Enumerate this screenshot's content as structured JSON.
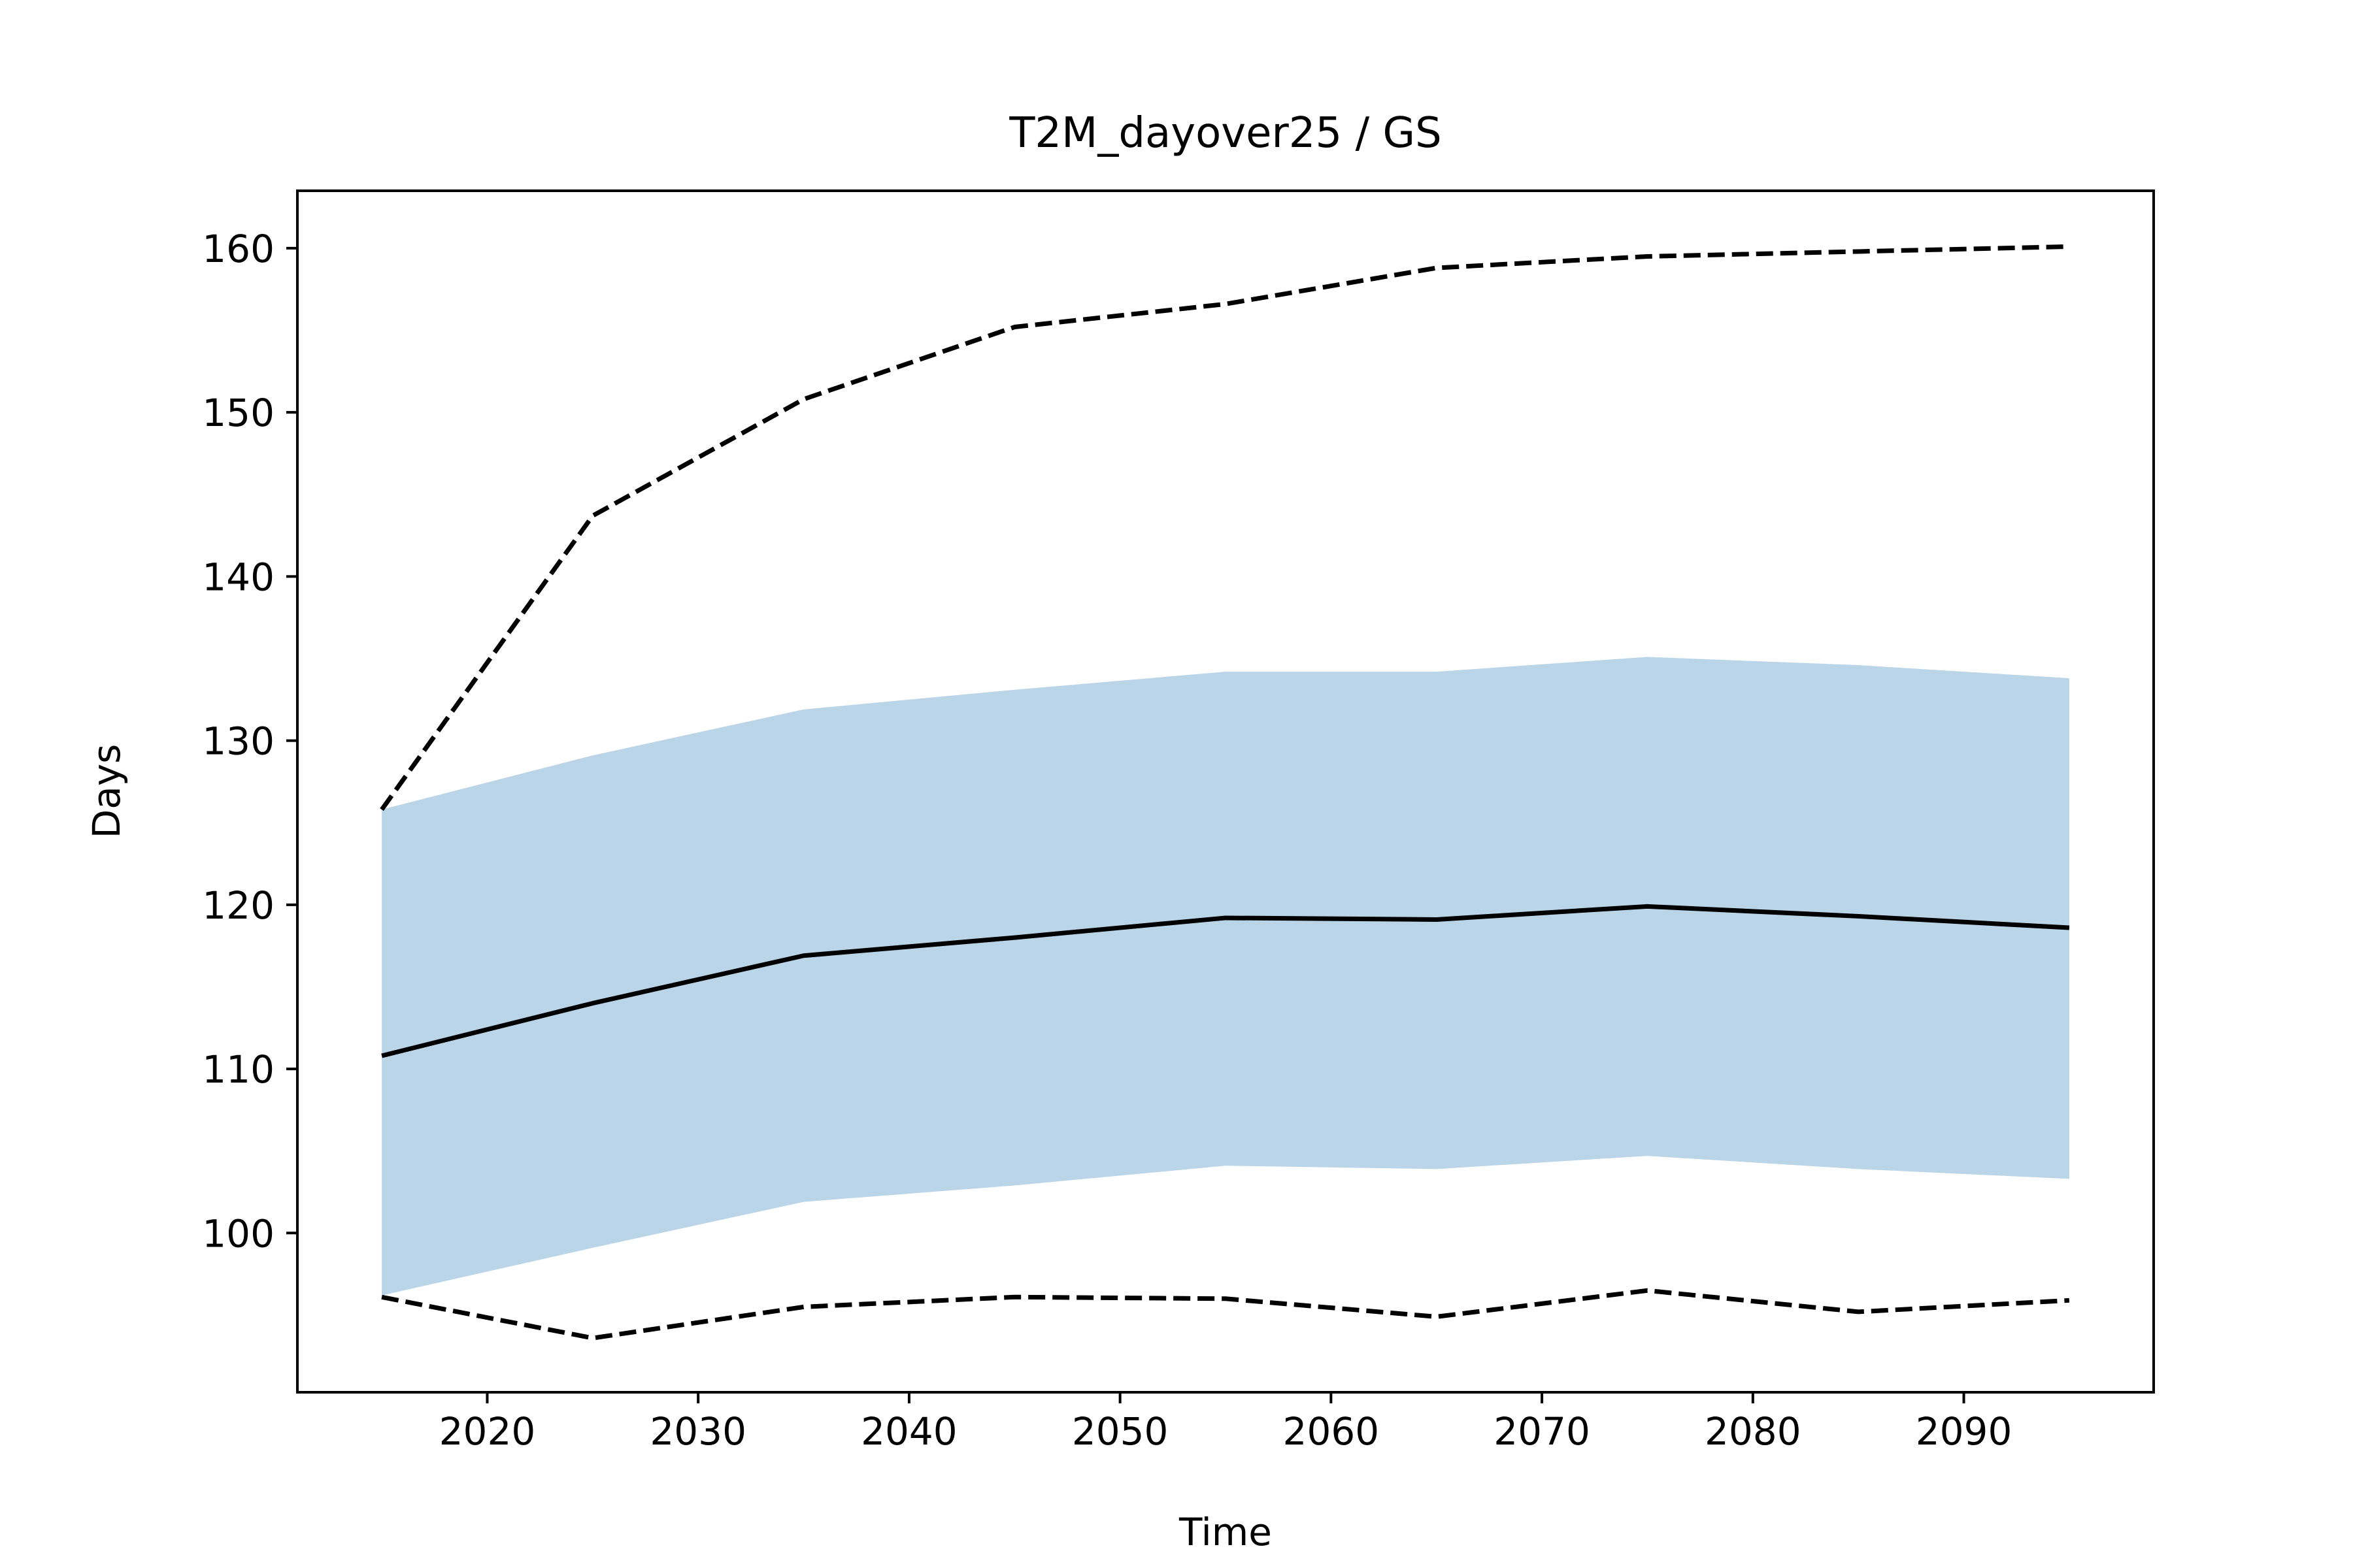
{
  "chart_data": {
    "type": "line",
    "title": "T2M_dayover25 / GS",
    "xlabel": "Time",
    "ylabel": "Days",
    "x": [
      2015,
      2025,
      2035,
      2045,
      2055,
      2065,
      2075,
      2085,
      2095
    ],
    "xlim": [
      2011,
      2099
    ],
    "ylim": [
      90.3,
      163.5
    ],
    "xticks": [
      2020,
      2030,
      2040,
      2050,
      2060,
      2070,
      2080,
      2090
    ],
    "yticks": [
      100,
      110,
      120,
      130,
      140,
      150,
      160
    ],
    "grid": false,
    "series": [
      {
        "style": "solid",
        "color": "#000000",
        "values": [
          110.8,
          114.0,
          116.9,
          118.0,
          119.2,
          119.1,
          119.9,
          119.3,
          118.6
        ]
      },
      {
        "style": "dashed",
        "color": "#000000",
        "values": [
          125.8,
          143.7,
          150.8,
          155.2,
          156.6,
          158.8,
          159.5,
          159.8,
          160.1
        ]
      },
      {
        "style": "dashed",
        "color": "#000000",
        "values": [
          96.1,
          93.6,
          95.5,
          96.1,
          96.0,
          94.9,
          96.5,
          95.2,
          95.9
        ]
      }
    ],
    "band": {
      "color": "#bbd5e8",
      "upper": [
        125.8,
        129.1,
        131.9,
        133.1,
        134.2,
        134.2,
        135.1,
        134.6,
        133.8
      ],
      "lower": [
        96.2,
        99.1,
        101.9,
        102.9,
        104.1,
        103.9,
        104.7,
        103.9,
        103.3
      ]
    }
  }
}
